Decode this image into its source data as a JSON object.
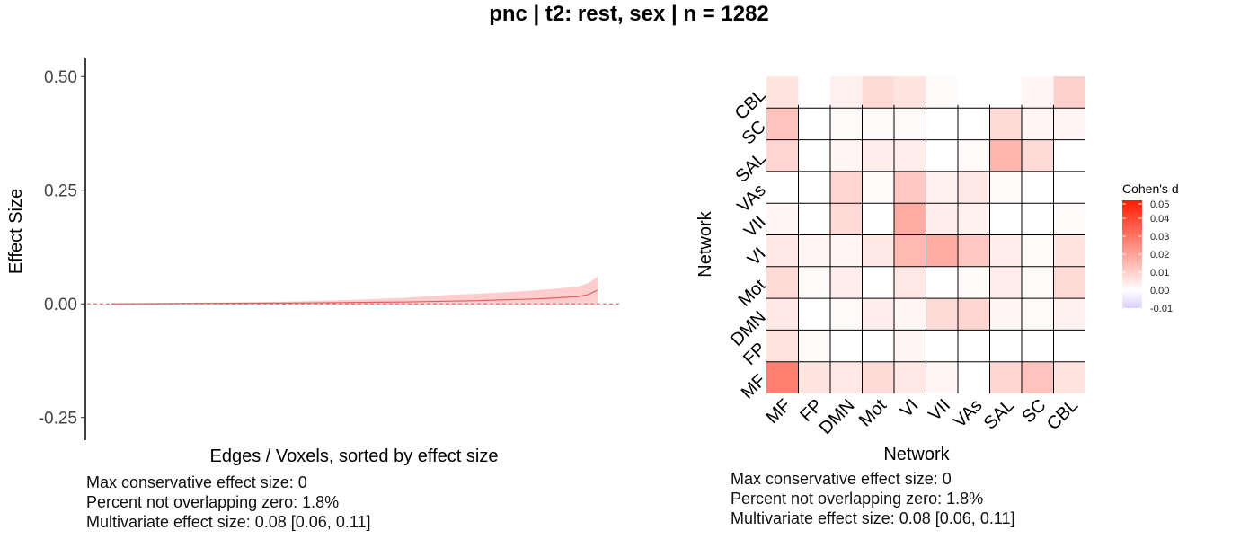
{
  "title": "pnc | t2: rest, sex | n = 1282",
  "left_stats": [
    "Max conservative effect size: 0",
    "Percent not overlapping zero: 1.8%",
    "Multivariate effect size: 0.08 [0.06, 0.11]"
  ],
  "right_stats": [
    "Max conservative effect size: 0",
    "Percent not overlapping zero: 1.8%",
    "Multivariate effect size: 0.08 [0.06, 0.11]"
  ],
  "colors": {
    "line": "#e06060",
    "ribbon": "#ffc8c8",
    "zero_line": "#e05050",
    "heat_low": "#ddd0ff",
    "heat_zero": "#ffffff",
    "heat_high": "#ff1a00"
  },
  "chart_data": [
    {
      "type": "line",
      "xlabel": "Edges / Voxels, sorted by effect size",
      "ylabel": "Effect Size",
      "ylim": [
        -0.3,
        0.54
      ],
      "yticks": [
        0.5,
        0.25,
        0.0,
        -0.25
      ],
      "ytick_labels": [
        "0.50",
        "0.25",
        "0.00",
        "-0.25"
      ],
      "reference_line": 0,
      "x": [
        0,
        0.1,
        0.2,
        0.3,
        0.4,
        0.5,
        0.55,
        0.6,
        0.65,
        0.7,
        0.75,
        0.8,
        0.85,
        0.9,
        0.93,
        0.96,
        0.98,
        1.0
      ],
      "estimate": [
        0,
        0.0005,
        0.001,
        0.0015,
        0.002,
        0.003,
        0.0035,
        0.004,
        0.005,
        0.006,
        0.007,
        0.0085,
        0.01,
        0.012,
        0.014,
        0.016,
        0.02,
        0.03
      ],
      "ci_lower": [
        -0.001,
        -0.001,
        -0.001,
        -0.001,
        -0.001,
        -0.001,
        -0.001,
        -0.001,
        -0.001,
        -0.001,
        -0.001,
        -0.001,
        -0.001,
        -0.001,
        -0.001,
        -0.001,
        -0.001,
        -0.001
      ],
      "ci_upper": [
        0.001,
        0.002,
        0.003,
        0.004,
        0.006,
        0.009,
        0.011,
        0.013,
        0.017,
        0.02,
        0.022,
        0.025,
        0.028,
        0.032,
        0.035,
        0.038,
        0.045,
        0.06
      ]
    },
    {
      "type": "heatmap",
      "xlabel": "Network",
      "ylabel": "Network",
      "x_categories": [
        "MF",
        "FP",
        "DMN",
        "Mot",
        "VI",
        "VII",
        "VAs",
        "SAL",
        "SC",
        "CBL"
      ],
      "y_categories": [
        "MF",
        "FP",
        "DMN",
        "Mot",
        "VI",
        "VII",
        "VAs",
        "SAL",
        "SC",
        "CBL"
      ],
      "legend_title": "Cohen's d",
      "legend_ticks": [
        0.05,
        0.04,
        0.03,
        0.02,
        0.01,
        0.0,
        -0.01
      ],
      "legend_tick_labels": [
        "0.05",
        "0.04",
        "0.03",
        "0.02",
        "0.01",
        "0.00",
        "-0.01"
      ],
      "color_range": [
        -0.01,
        0.05
      ],
      "values": [
        [
          0.028,
          0.006,
          0.005,
          0.008,
          0.005,
          0.002,
          0.0,
          0.009,
          0.013,
          0.006
        ],
        [
          0.006,
          0.001,
          0.0,
          0.0,
          0.002,
          0.0,
          0.0,
          0.0,
          0.0,
          0.0
        ],
        [
          0.005,
          0.0,
          0.001,
          0.004,
          0.002,
          0.008,
          0.009,
          0.002,
          0.001,
          0.003
        ],
        [
          0.008,
          0.001,
          0.004,
          0.0,
          0.005,
          0.0,
          0.001,
          0.004,
          0.001,
          0.008
        ],
        [
          0.005,
          0.002,
          0.002,
          0.005,
          0.015,
          0.018,
          0.012,
          0.004,
          0.001,
          0.006
        ],
        [
          0.002,
          0.0,
          0.008,
          0.0,
          0.018,
          0.004,
          0.003,
          0.0,
          0.0,
          0.001
        ],
        [
          0.0,
          0.0,
          0.009,
          0.001,
          0.012,
          0.003,
          0.005,
          0.001,
          0.0,
          0.0
        ],
        [
          0.009,
          0.0,
          0.002,
          0.004,
          0.004,
          0.0,
          0.001,
          0.016,
          0.008,
          0.0
        ],
        [
          0.013,
          0.0,
          0.001,
          0.001,
          0.001,
          0.0,
          0.0,
          0.008,
          0.002,
          0.002
        ],
        [
          0.006,
          0.0,
          0.003,
          0.008,
          0.006,
          0.001,
          0.0,
          0.0,
          0.002,
          0.01
        ]
      ]
    }
  ]
}
